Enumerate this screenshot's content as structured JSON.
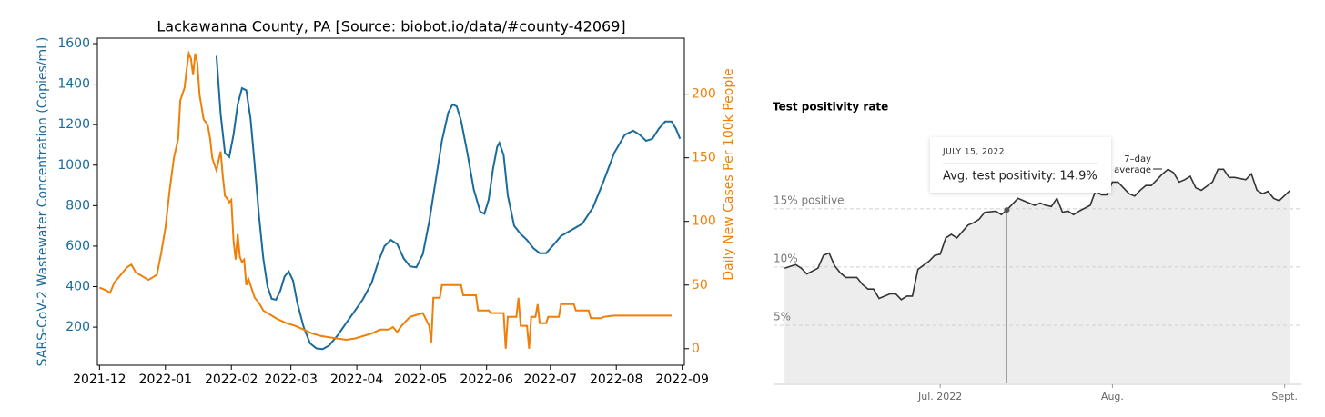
{
  "chart_data": [
    {
      "type": "line",
      "title": "Lackawanna County, PA [Source: biobot.io/data/#county-42069]",
      "ylabel": "SARS-CoV-2 Wastewater Concentration (Copies/mL)",
      "y2label": "Daily New Cases Per 100k People",
      "xlim": [
        -1,
        275
      ],
      "xticks": [
        {
          "value": 0,
          "label": "2021-12"
        },
        {
          "value": 31,
          "label": "2022-01"
        },
        {
          "value": 62,
          "label": "2022-02"
        },
        {
          "value": 90,
          "label": "2022-03"
        },
        {
          "value": 121,
          "label": "2022-04"
        },
        {
          "value": 151,
          "label": "2022-05"
        },
        {
          "value": 182,
          "label": "2022-06"
        },
        {
          "value": 212,
          "label": "2022-07"
        },
        {
          "value": 243,
          "label": "2022-08"
        },
        {
          "value": 274,
          "label": "2022-09"
        }
      ],
      "ylim": [
        12,
        1627
      ],
      "yticks": [
        200,
        400,
        600,
        800,
        1000,
        1200,
        1400,
        1600
      ],
      "y2lim": [
        -13,
        244
      ],
      "y2ticks": [
        0,
        50,
        100,
        150,
        200
      ],
      "series": [
        {
          "name": "Wastewater",
          "color": "#1a6b9c",
          "x": [
            55,
            57,
            59,
            61,
            63,
            65,
            67,
            69,
            71,
            73,
            75,
            77,
            79,
            81,
            83,
            85,
            87,
            89,
            91,
            93,
            96,
            99,
            102,
            105,
            108,
            112,
            116,
            120,
            124,
            128,
            131,
            134,
            137,
            140,
            143,
            146,
            149,
            152,
            155,
            158,
            161,
            164,
            166,
            168,
            170,
            173,
            176,
            179,
            181,
            183,
            185,
            187,
            188,
            190,
            192,
            195,
            198,
            201,
            204,
            207,
            210,
            213,
            217,
            222,
            227,
            232,
            237,
            242,
            247,
            251,
            254,
            257,
            260,
            263,
            266,
            269,
            271,
            273
          ],
          "values": [
            1540,
            1250,
            1060,
            1040,
            1150,
            1300,
            1380,
            1370,
            1230,
            1000,
            750,
            540,
            400,
            340,
            335,
            380,
            450,
            475,
            430,
            320,
            200,
            120,
            95,
            92,
            110,
            160,
            220,
            280,
            340,
            420,
            520,
            600,
            630,
            610,
            540,
            500,
            495,
            560,
            720,
            920,
            1120,
            1260,
            1300,
            1290,
            1220,
            1060,
            880,
            770,
            760,
            830,
            980,
            1090,
            1110,
            1050,
            850,
            700,
            660,
            630,
            590,
            565,
            565,
            600,
            650,
            680,
            710,
            790,
            920,
            1060,
            1150,
            1170,
            1150,
            1120,
            1130,
            1180,
            1215,
            1215,
            1180,
            1130
          ]
        },
        {
          "name": "Cases",
          "color": "#f07f0a",
          "axis": "y2",
          "x": [
            0,
            3,
            5,
            7,
            10,
            13,
            15,
            17,
            19,
            21,
            23,
            25,
            27,
            29,
            31,
            33,
            35,
            37,
            38,
            40,
            41,
            42,
            43,
            44,
            45,
            46,
            47,
            48,
            49,
            50,
            51,
            52,
            53,
            54,
            55,
            56,
            57,
            58,
            59,
            60,
            61,
            62,
            63,
            64,
            65,
            66,
            67,
            68,
            69,
            70,
            72,
            73,
            75,
            77,
            80,
            84,
            88,
            92,
            96,
            100,
            104,
            108,
            112,
            116,
            120,
            124,
            128,
            132,
            136,
            138,
            140,
            142,
            146,
            150,
            152,
            155,
            156,
            157,
            160,
            161,
            170,
            171,
            177,
            178,
            183,
            184,
            190,
            191,
            192,
            196,
            197,
            198,
            201,
            202,
            203,
            205,
            206,
            207,
            210,
            211,
            216,
            217,
            223,
            224,
            230,
            231,
            236,
            237,
            242,
            246,
            250,
            255,
            260,
            265,
            269
          ],
          "values": [
            48,
            46,
            44,
            52,
            58,
            64,
            66,
            60,
            58,
            56,
            54,
            56,
            58,
            75,
            95,
            125,
            150,
            165,
            195,
            205,
            220,
            232,
            228,
            215,
            232,
            225,
            200,
            190,
            180,
            178,
            175,
            165,
            150,
            145,
            140,
            148,
            155,
            135,
            120,
            118,
            115,
            117,
            85,
            70,
            90,
            72,
            68,
            70,
            50,
            55,
            45,
            40,
            36,
            30,
            27,
            23,
            20,
            18,
            15,
            12,
            10,
            9,
            8,
            7,
            8,
            10,
            12,
            15,
            15,
            17,
            13,
            18,
            25,
            27,
            28,
            18,
            5,
            40,
            40,
            50,
            50,
            42,
            42,
            30,
            30,
            28,
            28,
            0,
            25,
            25,
            40,
            18,
            18,
            0,
            25,
            25,
            35,
            20,
            20,
            25,
            25,
            35,
            35,
            30,
            30,
            24,
            24,
            25,
            26,
            26,
            26,
            26,
            26,
            26,
            26
          ]
        }
      ]
    },
    {
      "type": "area",
      "title": "Test positivity rate",
      "xlim": [
        -30,
        65
      ],
      "xticks": [
        {
          "value": 0,
          "label": "Jul. 2022"
        },
        {
          "value": 31,
          "label": "Aug."
        },
        {
          "value": 62,
          "label": "Sept."
        }
      ],
      "ylim": [
        0,
        21
      ],
      "yticks": [
        {
          "value": 5,
          "label": "5%"
        },
        {
          "value": 10,
          "label": "10%"
        },
        {
          "value": 15,
          "label": "15% positive"
        }
      ],
      "grid": true,
      "series": [
        {
          "name": "7–day average",
          "color": "#333333",
          "x": [
            -28,
            -26,
            -25,
            -24,
            -22,
            -21,
            -20,
            -19,
            -18,
            -17,
            -15,
            -14,
            -13,
            -12,
            -11,
            -9,
            -8,
            -7,
            -6,
            -5,
            -4,
            -2,
            -1,
            0,
            1,
            2,
            3,
            5,
            6,
            7,
            8,
            10,
            11,
            12,
            13,
            14,
            15,
            17,
            18,
            19,
            20,
            21,
            22,
            23,
            24,
            25,
            27,
            28,
            29,
            30,
            31,
            32,
            34,
            35,
            36,
            37,
            38,
            40,
            41,
            42,
            43,
            44,
            45,
            46,
            47,
            49,
            50,
            51,
            52,
            53,
            55,
            56,
            57,
            58,
            59,
            60,
            61,
            63
          ],
          "values": [
            9.9,
            10.2,
            9.9,
            9.4,
            9.9,
            11.0,
            11.2,
            10.1,
            9.5,
            9.1,
            9.1,
            8.5,
            8.1,
            8.1,
            7.3,
            7.7,
            7.7,
            7.2,
            7.5,
            7.5,
            9.8,
            10.5,
            11.0,
            11.1,
            12.5,
            12.8,
            12.5,
            13.6,
            13.8,
            14.1,
            14.7,
            14.8,
            14.5,
            14.9,
            15.4,
            15.9,
            15.7,
            15.3,
            15.5,
            15.3,
            15.2,
            15.9,
            14.7,
            14.8,
            14.5,
            14.8,
            15.3,
            16.6,
            16.2,
            16.2,
            17.3,
            17.3,
            16.3,
            16.1,
            16.6,
            17.0,
            17.0,
            18.0,
            18.4,
            18.1,
            17.3,
            17.5,
            17.8,
            16.8,
            16.6,
            17.3,
            18.4,
            18.4,
            17.7,
            17.7,
            17.5,
            18.0,
            16.6,
            16.3,
            16.5,
            15.9,
            15.7,
            16.6
          ]
        }
      ],
      "annotation": [
        "7–day",
        "average"
      ],
      "tooltip": {
        "x": 12,
        "label": "JULY 15, 2022",
        "value": 14.9,
        "value_label": "Avg. test positivity: 14.9%"
      }
    }
  ]
}
